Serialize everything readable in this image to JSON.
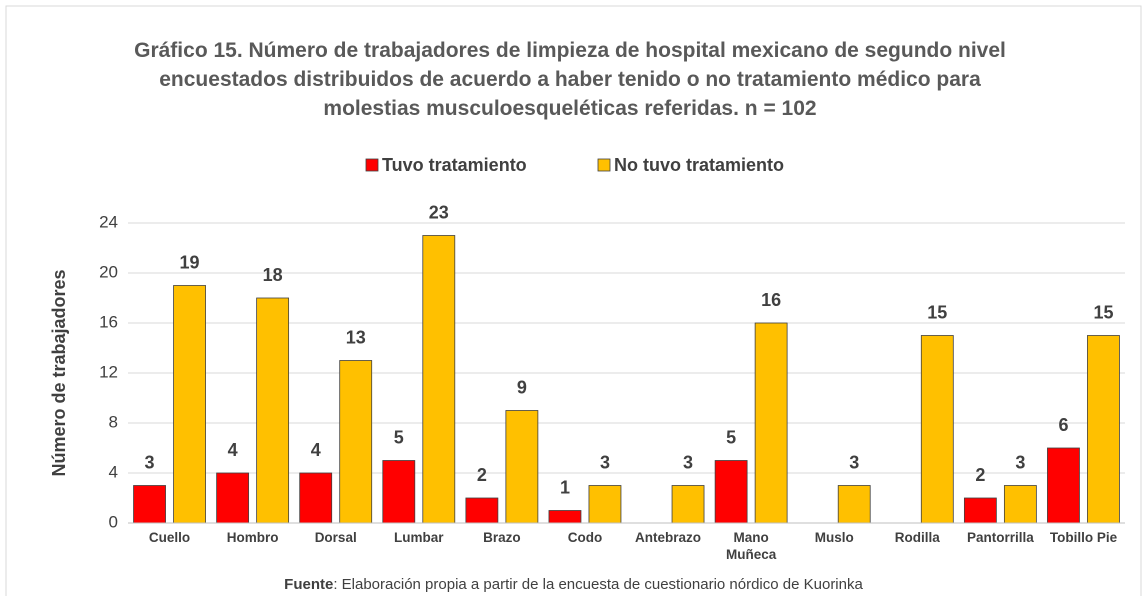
{
  "chart_data": {
    "type": "bar",
    "title": "Gráfico 15. Número de trabajadores de limpieza de hospital mexicano de segundo nivel encuestados distribuidos de acuerdo a haber tenido o no tratamiento médico para molestias musculoesqueléticas referidas. n = 102",
    "y_label": "Número de trabajadores",
    "categories": [
      "Cuello",
      "Hombro",
      "Dorsal",
      "Lumbar",
      "Brazo",
      "Codo",
      "Antebrazo",
      "Mano Muñeca",
      "Muslo",
      "Rodilla",
      "Pantorrilla",
      "Tobillo Pie"
    ],
    "series": [
      {
        "name": "Tuvo tratamiento",
        "color": "#ff0000",
        "values": [
          3,
          4,
          4,
          5,
          2,
          1,
          null,
          5,
          null,
          null,
          2,
          6
        ]
      },
      {
        "name": "No tuvo tratamiento",
        "color": "#ffc000",
        "values": [
          19,
          18,
          13,
          23,
          9,
          3,
          3,
          16,
          3,
          15,
          3,
          15
        ]
      }
    ],
    "ylim": [
      0,
      24
    ],
    "yticks": [
      0,
      4,
      8,
      12,
      16,
      20,
      24
    ],
    "grid": true,
    "legend": "top",
    "source_label": "Fuente",
    "source_text": ": Elaboración propia a partir de la encuesta de cuestionario nórdico de Kuorinka"
  }
}
